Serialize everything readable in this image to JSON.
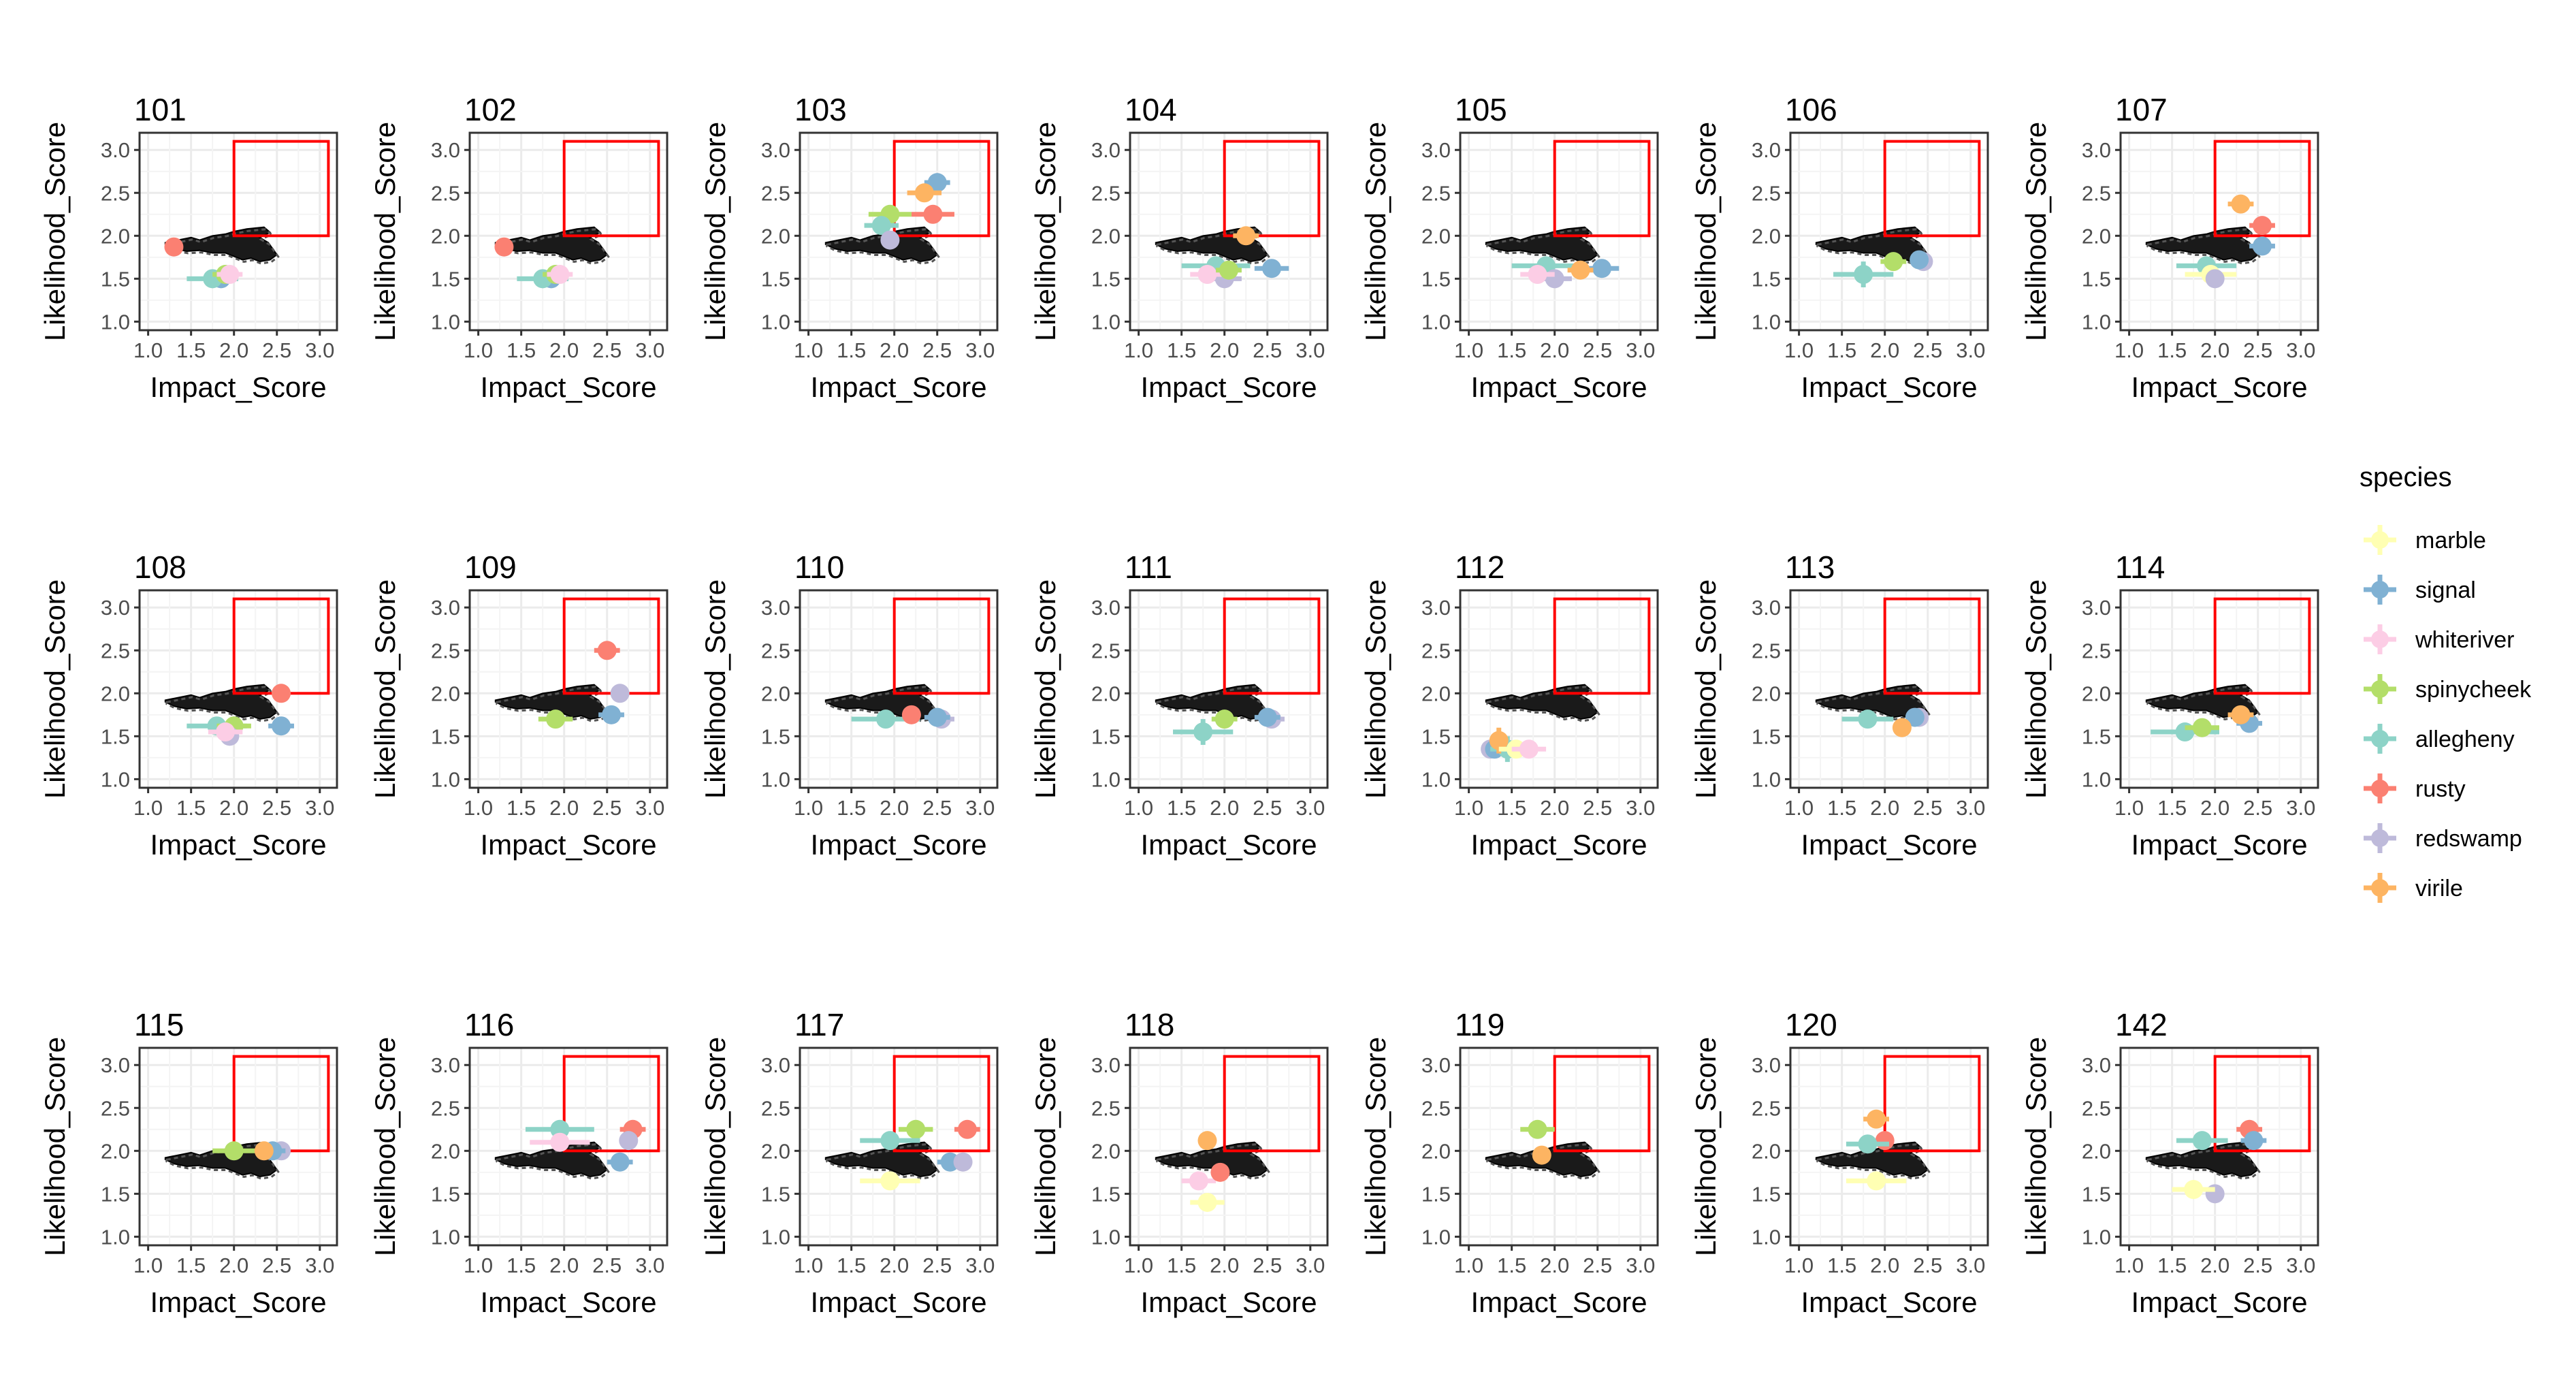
{
  "legend": {
    "title": "species",
    "items": [
      {
        "label": "marble",
        "color": "#FFFFB3"
      },
      {
        "label": "signal",
        "color": "#80B1D3"
      },
      {
        "label": "whiteriver",
        "color": "#FCCDE5"
      },
      {
        "label": "spinycheek",
        "color": "#B3DE69"
      },
      {
        "label": "allegheny",
        "color": "#8DD3C7"
      },
      {
        "label": "rusty",
        "color": "#FB8072"
      },
      {
        "label": "redswamp",
        "color": "#BEBADA"
      },
      {
        "label": "virile",
        "color": "#FDB462"
      }
    ]
  },
  "colors": {
    "grid": "#EBEBEB",
    "panel_border": "#333333",
    "highlight_box": "#FF0000",
    "watershed_fill": "#555555"
  },
  "chart_data": {
    "type": "scatter",
    "facet_layout": "3 rows x 7 columns",
    "xlabel": "Impact_Score",
    "ylabel": "Likelihood_Score",
    "xlim": [
      0.9,
      3.2
    ],
    "ylim": [
      0.9,
      3.2
    ],
    "ticks": [
      1.0,
      1.5,
      2.0,
      2.5,
      3.0
    ],
    "tick_labels": [
      "1.0",
      "1.5",
      "2.0",
      "2.5",
      "3.0"
    ],
    "grid": true,
    "legend_position": "right",
    "highlight_rect": {
      "x": [
        2.0,
        3.1
      ],
      "y": [
        2.0,
        3.1
      ]
    },
    "panels": [
      {
        "title": "101",
        "points": [
          {
            "species": "rusty",
            "x": 1.3,
            "y": 1.87,
            "xerr": 0.1,
            "yerr": 0.05
          },
          {
            "species": "signal",
            "x": 1.85,
            "y": 1.5,
            "xerr": 0.2,
            "yerr": 0.1
          },
          {
            "species": "allegheny",
            "x": 1.75,
            "y": 1.5,
            "xerr": 0.3,
            "yerr": 0.08
          },
          {
            "species": "spinycheek",
            "x": 1.9,
            "y": 1.55,
            "xerr": 0.15,
            "yerr": 0.05
          },
          {
            "species": "whiteriver",
            "x": 1.95,
            "y": 1.55,
            "xerr": 0.15,
            "yerr": 0.05
          }
        ]
      },
      {
        "title": "102",
        "points": [
          {
            "species": "rusty",
            "x": 1.3,
            "y": 1.87,
            "xerr": 0.1,
            "yerr": 0.05
          },
          {
            "species": "signal",
            "x": 1.85,
            "y": 1.5,
            "xerr": 0.2,
            "yerr": 0.1
          },
          {
            "species": "allegheny",
            "x": 1.75,
            "y": 1.5,
            "xerr": 0.3,
            "yerr": 0.08
          },
          {
            "species": "spinycheek",
            "x": 1.9,
            "y": 1.55,
            "xerr": 0.15,
            "yerr": 0.05
          },
          {
            "species": "whiteriver",
            "x": 1.95,
            "y": 1.55,
            "xerr": 0.15,
            "yerr": 0.05
          }
        ]
      },
      {
        "title": "103",
        "points": [
          {
            "species": "signal",
            "x": 2.5,
            "y": 2.62,
            "xerr": 0.15,
            "yerr": 0.08
          },
          {
            "species": "virile",
            "x": 2.35,
            "y": 2.5,
            "xerr": 0.2,
            "yerr": 0.08
          },
          {
            "species": "rusty",
            "x": 2.45,
            "y": 2.25,
            "xerr": 0.25,
            "yerr": 0.06
          },
          {
            "species": "spinycheek",
            "x": 1.95,
            "y": 2.25,
            "xerr": 0.25,
            "yerr": 0.06
          },
          {
            "species": "allegheny",
            "x": 1.85,
            "y": 2.12,
            "xerr": 0.2,
            "yerr": 0.06
          },
          {
            "species": "redswamp",
            "x": 1.95,
            "y": 1.95,
            "xerr": 0.1,
            "yerr": 0.05
          }
        ]
      },
      {
        "title": "104",
        "points": [
          {
            "species": "signal",
            "x": 2.55,
            "y": 1.62,
            "xerr": 0.2,
            "yerr": 0.05
          },
          {
            "species": "allegheny",
            "x": 1.9,
            "y": 1.65,
            "xerr": 0.4,
            "yerr": 0.06
          },
          {
            "species": "redswamp",
            "x": 2.0,
            "y": 1.5,
            "xerr": 0.2,
            "yerr": 0.05
          },
          {
            "species": "whiteriver",
            "x": 1.8,
            "y": 1.55,
            "xerr": 0.2,
            "yerr": 0.05
          },
          {
            "species": "spinycheek",
            "x": 2.05,
            "y": 1.6,
            "xerr": 0.15,
            "yerr": 0.05
          },
          {
            "species": "virile",
            "x": 2.25,
            "y": 2.0,
            "xerr": 0.15,
            "yerr": 0.05
          }
        ]
      },
      {
        "title": "105",
        "points": [
          {
            "species": "signal",
            "x": 2.55,
            "y": 1.62,
            "xerr": 0.2,
            "yerr": 0.05
          },
          {
            "species": "allegheny",
            "x": 1.9,
            "y": 1.65,
            "xerr": 0.4,
            "yerr": 0.06
          },
          {
            "species": "redswamp",
            "x": 2.0,
            "y": 1.5,
            "xerr": 0.2,
            "yerr": 0.05
          },
          {
            "species": "whiteriver",
            "x": 1.8,
            "y": 1.55,
            "xerr": 0.2,
            "yerr": 0.05
          },
          {
            "species": "virile",
            "x": 2.3,
            "y": 1.6,
            "xerr": 0.15,
            "yerr": 0.05
          }
        ]
      },
      {
        "title": "106",
        "points": [
          {
            "species": "allegheny",
            "x": 1.75,
            "y": 1.55,
            "xerr": 0.35,
            "yerr": 0.15
          },
          {
            "species": "redswamp",
            "x": 2.45,
            "y": 1.7,
            "xerr": 0.1,
            "yerr": 0.05
          },
          {
            "species": "signal",
            "x": 2.4,
            "y": 1.72,
            "xerr": 0.1,
            "yerr": 0.05
          },
          {
            "species": "spinycheek",
            "x": 2.1,
            "y": 1.7,
            "xerr": 0.15,
            "yerr": 0.05
          }
        ]
      },
      {
        "title": "107",
        "points": [
          {
            "species": "virile",
            "x": 2.3,
            "y": 2.37,
            "xerr": 0.15,
            "yerr": 0.08
          },
          {
            "species": "rusty",
            "x": 2.55,
            "y": 2.12,
            "xerr": 0.15,
            "yerr": 0.08
          },
          {
            "species": "signal",
            "x": 2.55,
            "y": 1.88,
            "xerr": 0.15,
            "yerr": 0.06
          },
          {
            "species": "allegheny",
            "x": 1.9,
            "y": 1.65,
            "xerr": 0.35,
            "yerr": 0.06
          },
          {
            "species": "marble",
            "x": 1.95,
            "y": 1.55,
            "xerr": 0.3,
            "yerr": 0.05
          },
          {
            "species": "redswamp",
            "x": 2.0,
            "y": 1.5,
            "xerr": 0.1,
            "yerr": 0.05
          }
        ]
      },
      {
        "title": "108",
        "points": [
          {
            "species": "rusty",
            "x": 2.55,
            "y": 2.0,
            "xerr": 0.1,
            "yerr": 0.06
          },
          {
            "species": "signal",
            "x": 2.55,
            "y": 1.62,
            "xerr": 0.15,
            "yerr": 0.05
          },
          {
            "species": "allegheny",
            "x": 1.8,
            "y": 1.62,
            "xerr": 0.35,
            "yerr": 0.06
          },
          {
            "species": "spinycheek",
            "x": 2.0,
            "y": 1.62,
            "xerr": 0.2,
            "yerr": 0.05
          },
          {
            "species": "redswamp",
            "x": 1.95,
            "y": 1.5,
            "xerr": 0.1,
            "yerr": 0.05
          },
          {
            "species": "whiteriver",
            "x": 1.9,
            "y": 1.55,
            "xerr": 0.2,
            "yerr": 0.05
          }
        ]
      },
      {
        "title": "109",
        "points": [
          {
            "species": "rusty",
            "x": 2.5,
            "y": 2.5,
            "xerr": 0.15,
            "yerr": 0.08
          },
          {
            "species": "redswamp",
            "x": 2.65,
            "y": 2.0,
            "xerr": 0.1,
            "yerr": 0.06
          },
          {
            "species": "signal",
            "x": 2.55,
            "y": 1.75,
            "xerr": 0.15,
            "yerr": 0.05
          },
          {
            "species": "spinycheek",
            "x": 1.9,
            "y": 1.7,
            "xerr": 0.2,
            "yerr": 0.05
          }
        ]
      },
      {
        "title": "110",
        "points": [
          {
            "species": "redswamp",
            "x": 2.55,
            "y": 1.7,
            "xerr": 0.15,
            "yerr": 0.05
          },
          {
            "species": "signal",
            "x": 2.5,
            "y": 1.72,
            "xerr": 0.15,
            "yerr": 0.05
          },
          {
            "species": "allegheny",
            "x": 1.9,
            "y": 1.7,
            "xerr": 0.4,
            "yerr": 0.1
          },
          {
            "species": "rusty",
            "x": 2.2,
            "y": 1.75,
            "xerr": 0.1,
            "yerr": 0.05
          }
        ]
      },
      {
        "title": "111",
        "points": [
          {
            "species": "redswamp",
            "x": 2.55,
            "y": 1.7,
            "xerr": 0.15,
            "yerr": 0.05
          },
          {
            "species": "signal",
            "x": 2.5,
            "y": 1.72,
            "xerr": 0.15,
            "yerr": 0.05
          },
          {
            "species": "allegheny",
            "x": 1.75,
            "y": 1.55,
            "xerr": 0.35,
            "yerr": 0.15
          },
          {
            "species": "spinycheek",
            "x": 2.0,
            "y": 1.7,
            "xerr": 0.15,
            "yerr": 0.05
          }
        ]
      },
      {
        "title": "112",
        "points": [
          {
            "species": "redswamp",
            "x": 1.25,
            "y": 1.35,
            "xerr": 0.1,
            "yerr": 0.05
          },
          {
            "species": "signal",
            "x": 1.3,
            "y": 1.35,
            "xerr": 0.1,
            "yerr": 0.05
          },
          {
            "species": "allegheny",
            "x": 1.45,
            "y": 1.35,
            "xerr": 0.2,
            "yerr": 0.15
          },
          {
            "species": "virile",
            "x": 1.35,
            "y": 1.45,
            "xerr": 0.05,
            "yerr": 0.15
          },
          {
            "species": "marble",
            "x": 1.55,
            "y": 1.35,
            "xerr": 0.2,
            "yerr": 0.05
          },
          {
            "species": "whiteriver",
            "x": 1.7,
            "y": 1.35,
            "xerr": 0.2,
            "yerr": 0.05
          }
        ]
      },
      {
        "title": "113",
        "points": [
          {
            "species": "redswamp",
            "x": 2.4,
            "y": 1.72,
            "xerr": 0.1,
            "yerr": 0.05
          },
          {
            "species": "signal",
            "x": 2.35,
            "y": 1.72,
            "xerr": 0.1,
            "yerr": 0.05
          },
          {
            "species": "allegheny",
            "x": 1.8,
            "y": 1.7,
            "xerr": 0.3,
            "yerr": 0.08
          },
          {
            "species": "virile",
            "x": 2.2,
            "y": 1.6,
            "xerr": 0.1,
            "yerr": 0.08
          }
        ]
      },
      {
        "title": "114",
        "points": [
          {
            "species": "signal",
            "x": 2.4,
            "y": 1.65,
            "xerr": 0.15,
            "yerr": 0.05
          },
          {
            "species": "allegheny",
            "x": 1.65,
            "y": 1.55,
            "xerr": 0.4,
            "yerr": 0.1
          },
          {
            "species": "spinycheek",
            "x": 1.85,
            "y": 1.6,
            "xerr": 0.2,
            "yerr": 0.05
          },
          {
            "species": "virile",
            "x": 2.3,
            "y": 1.75,
            "xerr": 0.15,
            "yerr": 0.05
          }
        ]
      },
      {
        "title": "115",
        "points": [
          {
            "species": "redswamp",
            "x": 2.55,
            "y": 2.0,
            "xerr": 0.1,
            "yerr": 0.05
          },
          {
            "species": "signal",
            "x": 2.45,
            "y": 2.0,
            "xerr": 0.15,
            "yerr": 0.05
          },
          {
            "species": "spinycheek",
            "x": 2.0,
            "y": 2.0,
            "xerr": 0.25,
            "yerr": 0.05
          },
          {
            "species": "virile",
            "x": 2.35,
            "y": 2.0,
            "xerr": 0.1,
            "yerr": 0.05
          }
        ]
      },
      {
        "title": "116",
        "points": [
          {
            "species": "rusty",
            "x": 2.8,
            "y": 2.25,
            "xerr": 0.15,
            "yerr": 0.08
          },
          {
            "species": "redswamp",
            "x": 2.75,
            "y": 2.12,
            "xerr": 0.1,
            "yerr": 0.05
          },
          {
            "species": "allegheny",
            "x": 1.95,
            "y": 2.25,
            "xerr": 0.4,
            "yerr": 0.08
          },
          {
            "species": "whiteriver",
            "x": 1.95,
            "y": 2.1,
            "xerr": 0.35,
            "yerr": 0.06
          },
          {
            "species": "signal",
            "x": 2.65,
            "y": 1.87,
            "xerr": 0.15,
            "yerr": 0.05
          }
        ]
      },
      {
        "title": "117",
        "points": [
          {
            "species": "spinycheek",
            "x": 2.25,
            "y": 2.25,
            "xerr": 0.2,
            "yerr": 0.06
          },
          {
            "species": "rusty",
            "x": 2.85,
            "y": 2.25,
            "xerr": 0.15,
            "yerr": 0.06
          },
          {
            "species": "allegheny",
            "x": 1.95,
            "y": 2.12,
            "xerr": 0.35,
            "yerr": 0.06
          },
          {
            "species": "signal",
            "x": 2.65,
            "y": 1.87,
            "xerr": 0.15,
            "yerr": 0.05
          },
          {
            "species": "redswamp",
            "x": 2.8,
            "y": 1.87,
            "xerr": 0.1,
            "yerr": 0.05
          },
          {
            "species": "marble",
            "x": 1.95,
            "y": 1.65,
            "xerr": 0.35,
            "yerr": 0.1
          }
        ]
      },
      {
        "title": "118",
        "points": [
          {
            "species": "virile",
            "x": 1.8,
            "y": 2.12,
            "xerr": 0.1,
            "yerr": 0.08
          },
          {
            "species": "marble",
            "x": 1.8,
            "y": 1.4,
            "xerr": 0.2,
            "yerr": 0.08
          },
          {
            "species": "whiteriver",
            "x": 1.7,
            "y": 1.65,
            "xerr": 0.2,
            "yerr": 0.05
          },
          {
            "species": "rusty",
            "x": 1.95,
            "y": 1.75,
            "xerr": 0.1,
            "yerr": 0.05
          }
        ]
      },
      {
        "title": "119",
        "points": [
          {
            "species": "spinycheek",
            "x": 1.8,
            "y": 2.25,
            "xerr": 0.2,
            "yerr": 0.06
          },
          {
            "species": "virile",
            "x": 1.85,
            "y": 1.95,
            "xerr": 0.1,
            "yerr": 0.05
          }
        ]
      },
      {
        "title": "120",
        "points": [
          {
            "species": "virile",
            "x": 1.9,
            "y": 2.37,
            "xerr": 0.15,
            "yerr": 0.08
          },
          {
            "species": "rusty",
            "x": 2.0,
            "y": 2.12,
            "xerr": 0.1,
            "yerr": 0.05
          },
          {
            "species": "allegheny",
            "x": 1.8,
            "y": 2.08,
            "xerr": 0.25,
            "yerr": 0.1
          },
          {
            "species": "marble",
            "x": 1.9,
            "y": 1.65,
            "xerr": 0.35,
            "yerr": 0.08
          }
        ]
      },
      {
        "title": "142",
        "points": [
          {
            "species": "rusty",
            "x": 2.4,
            "y": 2.25,
            "xerr": 0.15,
            "yerr": 0.06
          },
          {
            "species": "signal",
            "x": 2.45,
            "y": 2.12,
            "xerr": 0.15,
            "yerr": 0.05
          },
          {
            "species": "allegheny",
            "x": 1.85,
            "y": 2.12,
            "xerr": 0.3,
            "yerr": 0.08
          },
          {
            "species": "redswamp",
            "x": 2.0,
            "y": 1.5,
            "xerr": 0.1,
            "yerr": 0.05
          },
          {
            "species": "marble",
            "x": 1.75,
            "y": 1.55,
            "xerr": 0.25,
            "yerr": 0.05
          }
        ]
      }
    ]
  }
}
